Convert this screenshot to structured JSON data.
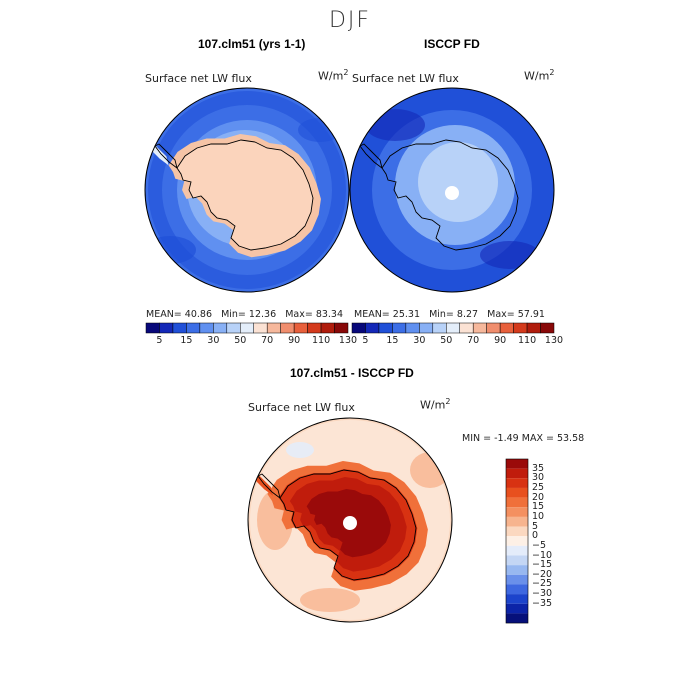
{
  "title": "DJF",
  "panels": [
    {
      "title": "107.clm51 (yrs 1-1)",
      "variable": "Surface net LW flux",
      "units_base": "W/m",
      "units_exp": "2",
      "mean_label": "MEAN=",
      "mean": "40.86",
      "min_label": "Min=",
      "min": "12.36",
      "max_label": "Max=",
      "max": "83.34"
    },
    {
      "title": "ISCCP FD",
      "variable": "Surface net LW flux",
      "units_base": "W/m",
      "units_exp": "2",
      "mean_label": "MEAN=",
      "mean": "25.31",
      "min_label": "Min=",
      "min": "8.27",
      "max_label": "Max=",
      "max": "57.91"
    }
  ],
  "colorbar": {
    "tick_labels": [
      "5",
      "15",
      "30",
      "50",
      "70",
      "90",
      "110",
      "130"
    ],
    "colors": [
      "#08087a",
      "#1428b8",
      "#2050d8",
      "#3c6ee6",
      "#6090f0",
      "#88b0f5",
      "#b8d2f8",
      "#e4eefa",
      "#fbe2d4",
      "#f6b89c",
      "#f08e6e",
      "#e8603c",
      "#d43a1c",
      "#b01c0c",
      "#880808"
    ]
  },
  "diff": {
    "title": "107.clm51 - ISCCP FD",
    "variable": "Surface net LW flux",
    "units_base": "W/m",
    "units_exp": "2",
    "min_label": "MIN =",
    "min": "-1.49",
    "max_label": "MAX =",
    "max": "53.58",
    "legend_labels": [
      "35",
      "30",
      "25",
      "20",
      "15",
      "10",
      "5",
      "0",
      "−5",
      "−10",
      "−15",
      "−20",
      "−25",
      "−30",
      "−35"
    ],
    "legend_colors": [
      "#9a0a0a",
      "#c01c0c",
      "#d83212",
      "#e8501e",
      "#f0703a",
      "#f49060",
      "#f7b48e",
      "#fbd8c0",
      "#fdf0e6",
      "#e4ecfa",
      "#c4d6f4",
      "#98b8f0",
      "#6a90ea",
      "#3e68e0",
      "#1c44cc",
      "#0c24a8",
      "#06107a"
    ]
  }
}
